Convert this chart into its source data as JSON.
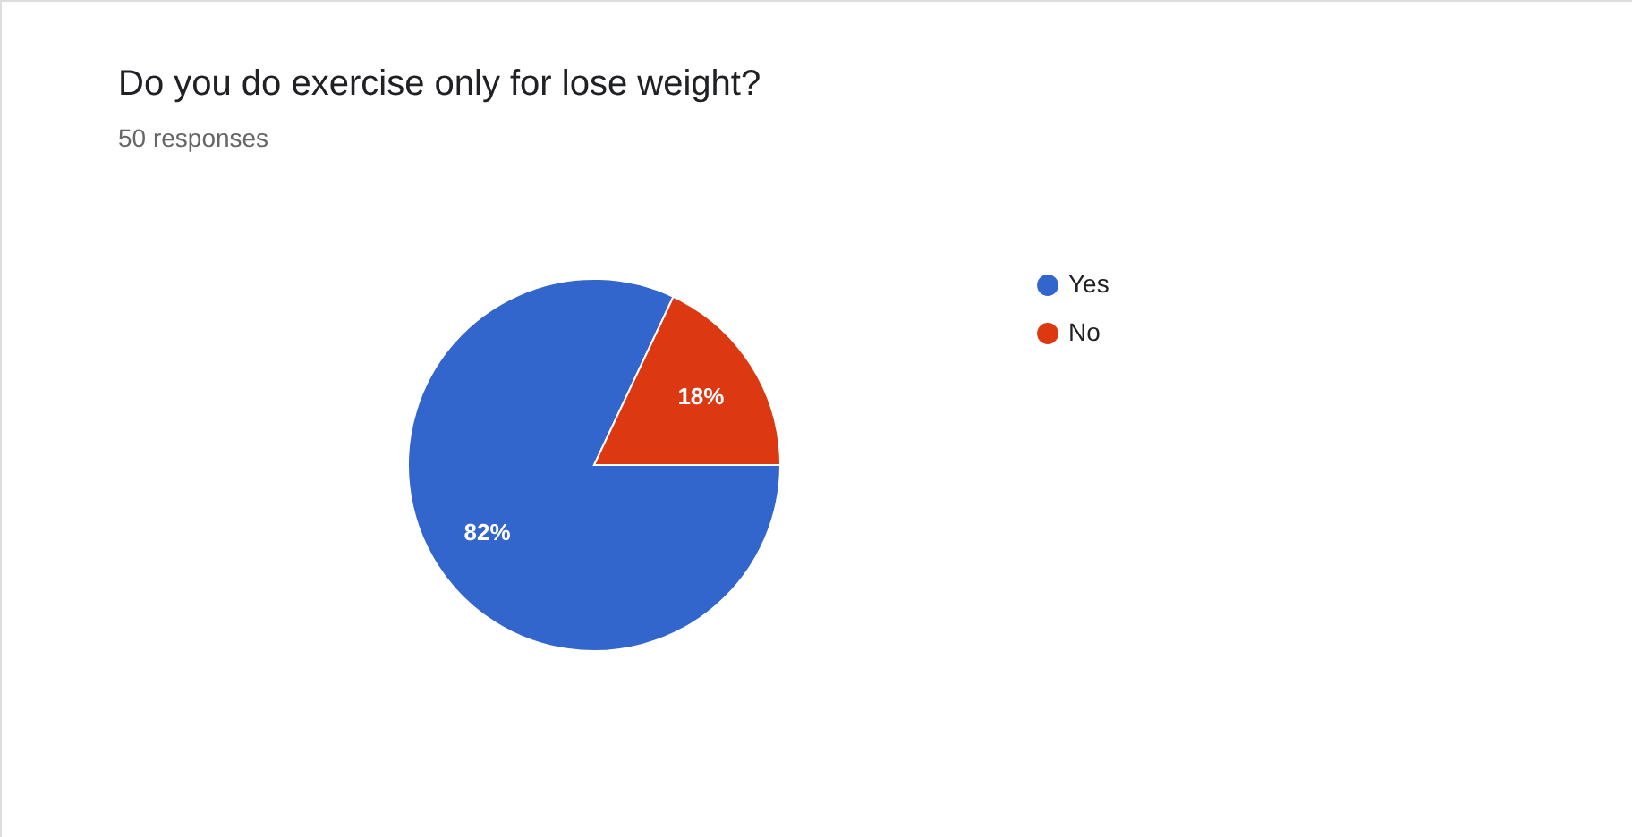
{
  "chart_data": {
    "type": "pie",
    "title": "Do you do exercise only for lose weight?",
    "subtitle": "50 responses",
    "categories": [
      "Yes",
      "No"
    ],
    "values": [
      82,
      18
    ],
    "colors": [
      "#3366cc",
      "#dc3912"
    ],
    "value_labels": [
      "82%",
      "18%"
    ],
    "legend": "right"
  }
}
